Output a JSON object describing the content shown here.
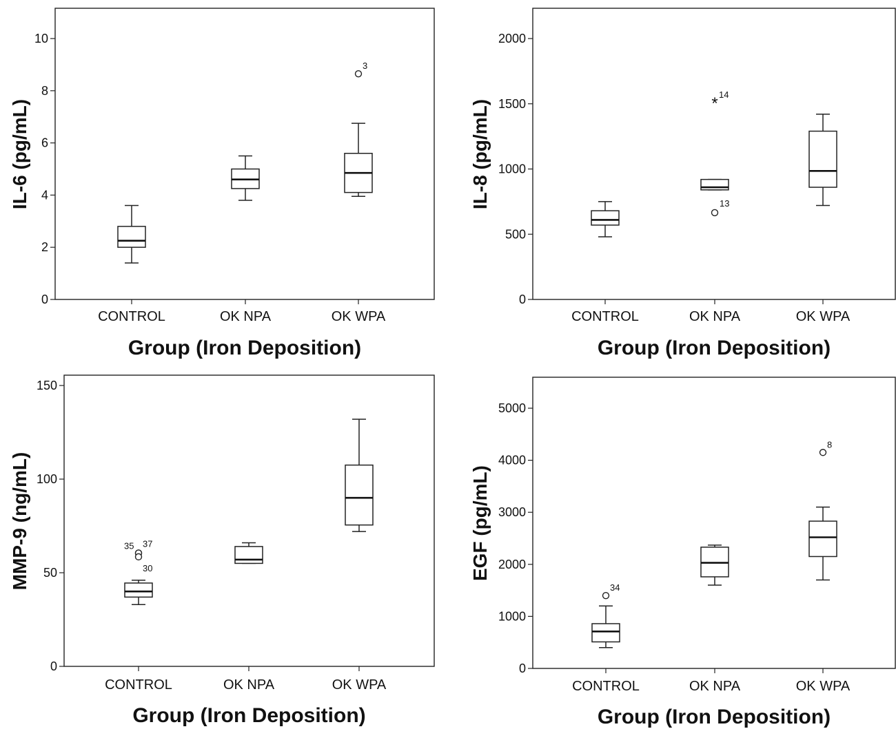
{
  "chart_data": [
    {
      "type": "box",
      "title": "",
      "xlabel": "Group (Iron Deposition)",
      "ylabel": "IL-6 (pg/mL)",
      "ylim": [
        0,
        11
      ],
      "yticks": [
        "0",
        "2",
        "4",
        "6",
        "8",
        "10"
      ],
      "categories": [
        "CONTROL",
        "OK NPA",
        "OK WPA"
      ],
      "boxes": [
        {
          "category": "CONTROL",
          "whisker_low": 1.4,
          "q1": 2.0,
          "median": 2.25,
          "q3": 2.8,
          "whisker_high": 3.6,
          "outliers": []
        },
        {
          "category": "OK NPA",
          "whisker_low": 3.8,
          "q1": 4.25,
          "median": 4.6,
          "q3": 5.0,
          "whisker_high": 5.5,
          "outliers": []
        },
        {
          "category": "OK WPA",
          "whisker_low": 3.95,
          "q1": 4.1,
          "median": 4.85,
          "q3": 5.6,
          "whisker_high": 6.75,
          "outliers": [
            {
              "value": 8.65,
              "label": "3",
              "marker": "circle"
            }
          ]
        }
      ]
    },
    {
      "type": "box",
      "title": "",
      "xlabel": "Group (Iron Deposition)",
      "ylabel": "IL-8 (pg/mL)",
      "ylim": [
        0,
        2200
      ],
      "yticks": [
        "0",
        "500",
        "1000",
        "1500",
        "2000"
      ],
      "categories": [
        "CONTROL",
        "OK NPA",
        "OK WPA"
      ],
      "boxes": [
        {
          "category": "CONTROL",
          "whisker_low": 480,
          "q1": 570,
          "median": 610,
          "q3": 680,
          "whisker_high": 750,
          "outliers": []
        },
        {
          "category": "OK NPA",
          "whisker_low": 840,
          "q1": 840,
          "median": 860,
          "q3": 920,
          "whisker_high": 920,
          "outliers": [
            {
              "value": 1510,
              "label": "14",
              "marker": "star"
            },
            {
              "value": 665,
              "label": "13",
              "marker": "circle"
            }
          ]
        },
        {
          "category": "OK WPA",
          "whisker_low": 720,
          "q1": 860,
          "median": 985,
          "q3": 1290,
          "whisker_high": 1420,
          "outliers": []
        }
      ]
    },
    {
      "type": "box",
      "title": "",
      "xlabel": "Group (Iron Deposition)",
      "ylabel": "MMP-9 (ng/mL)",
      "ylim": [
        0,
        155
      ],
      "yticks": [
        "0",
        "50",
        "100",
        "150"
      ],
      "categories": [
        "CONTROL",
        "OK NPA",
        "OK WPA"
      ],
      "boxes": [
        {
          "category": "CONTROL",
          "whisker_low": 33,
          "q1": 37,
          "median": 40,
          "q3": 44.5,
          "whisker_high": 46,
          "outliers": [
            {
              "value": 60.5,
              "label": "35",
              "marker": "circle"
            },
            {
              "value": 60.5,
              "label": "37",
              "marker": "circle"
            },
            {
              "value": 58.5,
              "label": "30",
              "marker": "circle"
            }
          ]
        },
        {
          "category": "OK NPA",
          "whisker_low": 55,
          "q1": 55,
          "median": 57,
          "q3": 64,
          "whisker_high": 66,
          "outliers": []
        },
        {
          "category": "OK WPA",
          "whisker_low": 72,
          "q1": 75.5,
          "median": 90,
          "q3": 107.5,
          "whisker_high": 132,
          "outliers": []
        }
      ]
    },
    {
      "type": "box",
      "title": "",
      "xlabel": "Group (Iron Deposition)",
      "ylabel": "EGF (pg/mL)",
      "ylim": [
        0,
        5600
      ],
      "yticks": [
        "0",
        "1000",
        "2000",
        "3000",
        "4000",
        "5000"
      ],
      "categories": [
        "CONTROL",
        "OK NPA",
        "OK WPA"
      ],
      "boxes": [
        {
          "category": "CONTROL",
          "whisker_low": 400,
          "q1": 510,
          "median": 710,
          "q3": 860,
          "whisker_high": 1200,
          "outliers": [
            {
              "value": 1400,
              "label": "34",
              "marker": "circle"
            }
          ]
        },
        {
          "category": "OK NPA",
          "whisker_low": 1600,
          "q1": 1760,
          "median": 2030,
          "q3": 2330,
          "whisker_high": 2370,
          "outliers": []
        },
        {
          "category": "OK WPA",
          "whisker_low": 1700,
          "q1": 2150,
          "median": 2520,
          "q3": 2830,
          "whisker_high": 3100,
          "outliers": [
            {
              "value": 4150,
              "label": "8",
              "marker": "circle"
            }
          ]
        }
      ]
    }
  ]
}
